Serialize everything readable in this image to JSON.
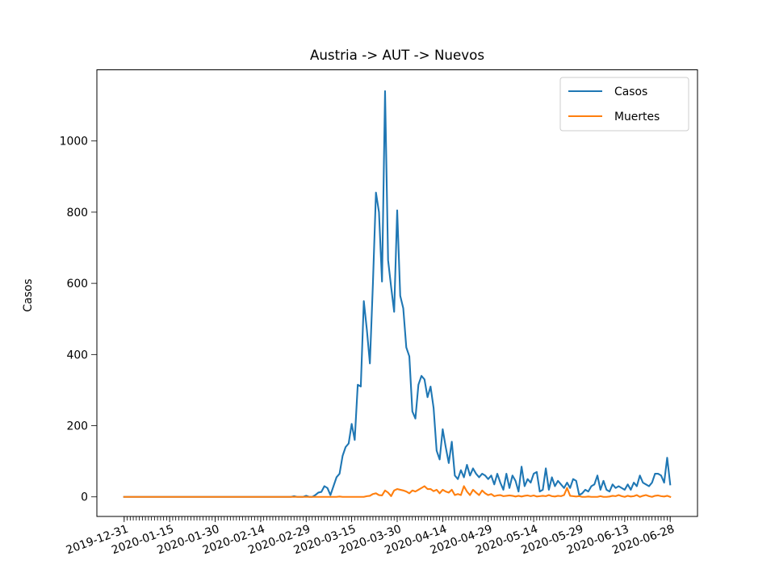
{
  "chart_data": {
    "type": "line",
    "title": "Austria -> AUT -> Nuevos",
    "xlabel": "",
    "ylabel": "Casos",
    "x_start": "2019-12-31",
    "x_end": "2020-06-28",
    "xtick_labels": [
      "2019-12-31",
      "2020-01-15",
      "2020-01-30",
      "2020-02-14",
      "2020-02-29",
      "2020-03-15",
      "2020-03-30",
      "2020-04-14",
      "2020-04-29",
      "2020-05-14",
      "2020-05-29",
      "2020-06-13",
      "2020-06-28"
    ],
    "yticks": [
      0,
      200,
      400,
      600,
      800,
      1000
    ],
    "ylim": [
      -55,
      1200
    ],
    "legend_position": "top-right",
    "grid": false,
    "series": [
      {
        "name": "Casos",
        "color": "#1f77b4",
        "points": [
          [
            "2019-12-31",
            0
          ],
          [
            "2020-02-24",
            0
          ],
          [
            "2020-02-25",
            2
          ],
          [
            "2020-02-29",
            3
          ],
          [
            "2020-03-03",
            5
          ],
          [
            "2020-03-04",
            12
          ],
          [
            "2020-03-05",
            14
          ],
          [
            "2020-03-06",
            30
          ],
          [
            "2020-03-07",
            25
          ],
          [
            "2020-03-08",
            5
          ],
          [
            "2020-03-09",
            30
          ],
          [
            "2020-03-10",
            55
          ],
          [
            "2020-03-11",
            65
          ],
          [
            "2020-03-12",
            115
          ],
          [
            "2020-03-13",
            140
          ],
          [
            "2020-03-14",
            150
          ],
          [
            "2020-03-15",
            205
          ],
          [
            "2020-03-16",
            160
          ],
          [
            "2020-03-17",
            315
          ],
          [
            "2020-03-18",
            310
          ],
          [
            "2020-03-19",
            550
          ],
          [
            "2020-03-20",
            470
          ],
          [
            "2020-03-21",
            375
          ],
          [
            "2020-03-22",
            600
          ],
          [
            "2020-03-23",
            855
          ],
          [
            "2020-03-24",
            800
          ],
          [
            "2020-03-25",
            605
          ],
          [
            "2020-03-26",
            1140
          ],
          [
            "2020-03-27",
            665
          ],
          [
            "2020-03-28",
            590
          ],
          [
            "2020-03-29",
            520
          ],
          [
            "2020-03-30",
            805
          ],
          [
            "2020-03-31",
            565
          ],
          [
            "2020-04-01",
            530
          ],
          [
            "2020-04-02",
            420
          ],
          [
            "2020-04-03",
            395
          ],
          [
            "2020-04-04",
            240
          ],
          [
            "2020-04-05",
            220
          ],
          [
            "2020-04-06",
            315
          ],
          [
            "2020-04-07",
            340
          ],
          [
            "2020-04-08",
            330
          ],
          [
            "2020-04-09",
            280
          ],
          [
            "2020-04-10",
            310
          ],
          [
            "2020-04-11",
            250
          ],
          [
            "2020-04-12",
            130
          ],
          [
            "2020-04-13",
            105
          ],
          [
            "2020-04-14",
            190
          ],
          [
            "2020-04-15",
            140
          ],
          [
            "2020-04-16",
            95
          ],
          [
            "2020-04-17",
            155
          ],
          [
            "2020-04-18",
            60
          ],
          [
            "2020-04-19",
            50
          ],
          [
            "2020-04-20",
            75
          ],
          [
            "2020-04-21",
            55
          ],
          [
            "2020-04-22",
            90
          ],
          [
            "2020-04-23",
            60
          ],
          [
            "2020-04-24",
            80
          ],
          [
            "2020-04-25",
            65
          ],
          [
            "2020-04-26",
            55
          ],
          [
            "2020-04-27",
            65
          ],
          [
            "2020-04-28",
            60
          ],
          [
            "2020-04-29",
            50
          ],
          [
            "2020-04-30",
            60
          ],
          [
            "2020-05-01",
            35
          ],
          [
            "2020-05-02",
            65
          ],
          [
            "2020-05-03",
            40
          ],
          [
            "2020-05-04",
            20
          ],
          [
            "2020-05-05",
            65
          ],
          [
            "2020-05-06",
            25
          ],
          [
            "2020-05-07",
            60
          ],
          [
            "2020-05-08",
            45
          ],
          [
            "2020-05-09",
            15
          ],
          [
            "2020-05-10",
            85
          ],
          [
            "2020-05-11",
            30
          ],
          [
            "2020-05-12",
            50
          ],
          [
            "2020-05-13",
            40
          ],
          [
            "2020-05-14",
            65
          ],
          [
            "2020-05-15",
            70
          ],
          [
            "2020-05-16",
            15
          ],
          [
            "2020-05-17",
            20
          ],
          [
            "2020-05-18",
            80
          ],
          [
            "2020-05-19",
            20
          ],
          [
            "2020-05-20",
            55
          ],
          [
            "2020-05-21",
            30
          ],
          [
            "2020-05-22",
            45
          ],
          [
            "2020-05-23",
            35
          ],
          [
            "2020-05-24",
            25
          ],
          [
            "2020-05-25",
            40
          ],
          [
            "2020-05-26",
            25
          ],
          [
            "2020-05-27",
            50
          ],
          [
            "2020-05-28",
            45
          ],
          [
            "2020-05-29",
            5
          ],
          [
            "2020-05-30",
            10
          ],
          [
            "2020-05-31",
            20
          ],
          [
            "2020-06-01",
            15
          ],
          [
            "2020-06-02",
            30
          ],
          [
            "2020-06-03",
            35
          ],
          [
            "2020-06-04",
            60
          ],
          [
            "2020-06-05",
            20
          ],
          [
            "2020-06-06",
            45
          ],
          [
            "2020-06-07",
            20
          ],
          [
            "2020-06-08",
            15
          ],
          [
            "2020-06-09",
            35
          ],
          [
            "2020-06-10",
            25
          ],
          [
            "2020-06-11",
            30
          ],
          [
            "2020-06-12",
            25
          ],
          [
            "2020-06-13",
            20
          ],
          [
            "2020-06-14",
            35
          ],
          [
            "2020-06-15",
            20
          ],
          [
            "2020-06-16",
            40
          ],
          [
            "2020-06-17",
            30
          ],
          [
            "2020-06-18",
            60
          ],
          [
            "2020-06-19",
            40
          ],
          [
            "2020-06-20",
            35
          ],
          [
            "2020-06-21",
            30
          ],
          [
            "2020-06-22",
            40
          ],
          [
            "2020-06-23",
            65
          ],
          [
            "2020-06-24",
            65
          ],
          [
            "2020-06-25",
            60
          ],
          [
            "2020-06-26",
            40
          ],
          [
            "2020-06-27",
            110
          ],
          [
            "2020-06-28",
            35
          ]
        ]
      },
      {
        "name": "Muertes",
        "color": "#ff7f0e",
        "points": [
          [
            "2019-12-31",
            0
          ],
          [
            "2020-03-11",
            1
          ],
          [
            "2020-03-20",
            2
          ],
          [
            "2020-03-21",
            3
          ],
          [
            "2020-03-22",
            8
          ],
          [
            "2020-03-23",
            10
          ],
          [
            "2020-03-24",
            5
          ],
          [
            "2020-03-25",
            4
          ],
          [
            "2020-03-26",
            18
          ],
          [
            "2020-03-27",
            12
          ],
          [
            "2020-03-28",
            2
          ],
          [
            "2020-03-29",
            18
          ],
          [
            "2020-03-30",
            22
          ],
          [
            "2020-03-31",
            20
          ],
          [
            "2020-04-01",
            18
          ],
          [
            "2020-04-02",
            15
          ],
          [
            "2020-04-03",
            10
          ],
          [
            "2020-04-04",
            18
          ],
          [
            "2020-04-05",
            15
          ],
          [
            "2020-04-06",
            20
          ],
          [
            "2020-04-07",
            25
          ],
          [
            "2020-04-08",
            30
          ],
          [
            "2020-04-09",
            22
          ],
          [
            "2020-04-10",
            22
          ],
          [
            "2020-04-11",
            16
          ],
          [
            "2020-04-12",
            20
          ],
          [
            "2020-04-13",
            10
          ],
          [
            "2020-04-14",
            20
          ],
          [
            "2020-04-15",
            15
          ],
          [
            "2020-04-16",
            12
          ],
          [
            "2020-04-17",
            20
          ],
          [
            "2020-04-18",
            5
          ],
          [
            "2020-04-19",
            8
          ],
          [
            "2020-04-20",
            5
          ],
          [
            "2020-04-21",
            30
          ],
          [
            "2020-04-22",
            15
          ],
          [
            "2020-04-23",
            5
          ],
          [
            "2020-04-24",
            20
          ],
          [
            "2020-04-25",
            12
          ],
          [
            "2020-04-26",
            5
          ],
          [
            "2020-04-27",
            18
          ],
          [
            "2020-04-28",
            10
          ],
          [
            "2020-04-29",
            5
          ],
          [
            "2020-04-30",
            8
          ],
          [
            "2020-05-01",
            2
          ],
          [
            "2020-05-02",
            4
          ],
          [
            "2020-05-03",
            5
          ],
          [
            "2020-05-04",
            2
          ],
          [
            "2020-05-05",
            3
          ],
          [
            "2020-05-06",
            4
          ],
          [
            "2020-05-07",
            3
          ],
          [
            "2020-05-08",
            1
          ],
          [
            "2020-05-09",
            3
          ],
          [
            "2020-05-10",
            1
          ],
          [
            "2020-05-11",
            3
          ],
          [
            "2020-05-12",
            4
          ],
          [
            "2020-05-13",
            2
          ],
          [
            "2020-05-14",
            4
          ],
          [
            "2020-05-15",
            1
          ],
          [
            "2020-05-16",
            2
          ],
          [
            "2020-05-17",
            3
          ],
          [
            "2020-05-18",
            2
          ],
          [
            "2020-05-19",
            5
          ],
          [
            "2020-05-20",
            2
          ],
          [
            "2020-05-21",
            1
          ],
          [
            "2020-05-22",
            3
          ],
          [
            "2020-05-23",
            2
          ],
          [
            "2020-05-24",
            5
          ],
          [
            "2020-05-25",
            25
          ],
          [
            "2020-05-26",
            3
          ],
          [
            "2020-05-27",
            2
          ],
          [
            "2020-05-28",
            1
          ],
          [
            "2020-05-29",
            2
          ],
          [
            "2020-06-01",
            1
          ],
          [
            "2020-06-05",
            2
          ],
          [
            "2020-06-08",
            1
          ],
          [
            "2020-06-09",
            3
          ],
          [
            "2020-06-10",
            2
          ],
          [
            "2020-06-11",
            5
          ],
          [
            "2020-06-12",
            2
          ],
          [
            "2020-06-13",
            0
          ],
          [
            "2020-06-14",
            3
          ],
          [
            "2020-06-15",
            1
          ],
          [
            "2020-06-16",
            2
          ],
          [
            "2020-06-17",
            5
          ],
          [
            "2020-06-18",
            0
          ],
          [
            "2020-06-19",
            3
          ],
          [
            "2020-06-20",
            5
          ],
          [
            "2020-06-21",
            2
          ],
          [
            "2020-06-22",
            0
          ],
          [
            "2020-06-23",
            3
          ],
          [
            "2020-06-24",
            4
          ],
          [
            "2020-06-25",
            2
          ],
          [
            "2020-06-26",
            1
          ],
          [
            "2020-06-27",
            3
          ],
          [
            "2020-06-28",
            0
          ]
        ]
      }
    ]
  }
}
